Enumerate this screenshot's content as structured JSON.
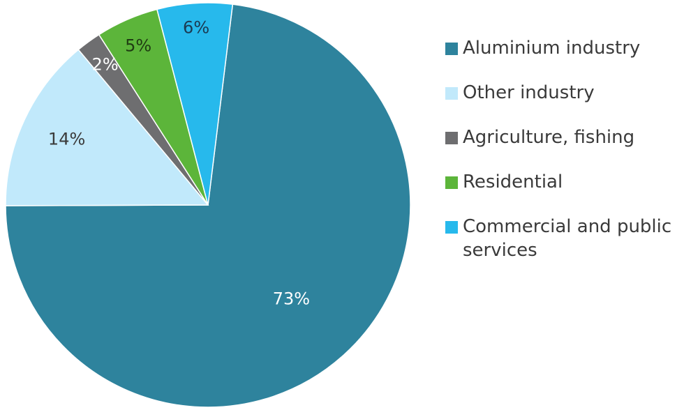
{
  "chart_data": {
    "type": "pie",
    "title": "",
    "slices": [
      {
        "label": "Aluminium industry",
        "value": 73,
        "display": "73%",
        "color": "#2e839d",
        "label_color": "#ffffff"
      },
      {
        "label": "Other industry",
        "value": 14,
        "display": "14%",
        "color": "#c1e9fb",
        "label_color": "#3a3a3a"
      },
      {
        "label": "Agriculture, fishing",
        "value": 2,
        "display": "2%",
        "color": "#6e6e70",
        "label_color": "#ffffff"
      },
      {
        "label": "Residential",
        "value": 5,
        "display": "5%",
        "color": "#5cb53a",
        "label_color": "#1f3b12"
      },
      {
        "label": "Commercial and public services",
        "value": 6,
        "display": "6%",
        "color": "#27b9ec",
        "label_color": "#1b3a52"
      }
    ],
    "legend_position": "right"
  }
}
